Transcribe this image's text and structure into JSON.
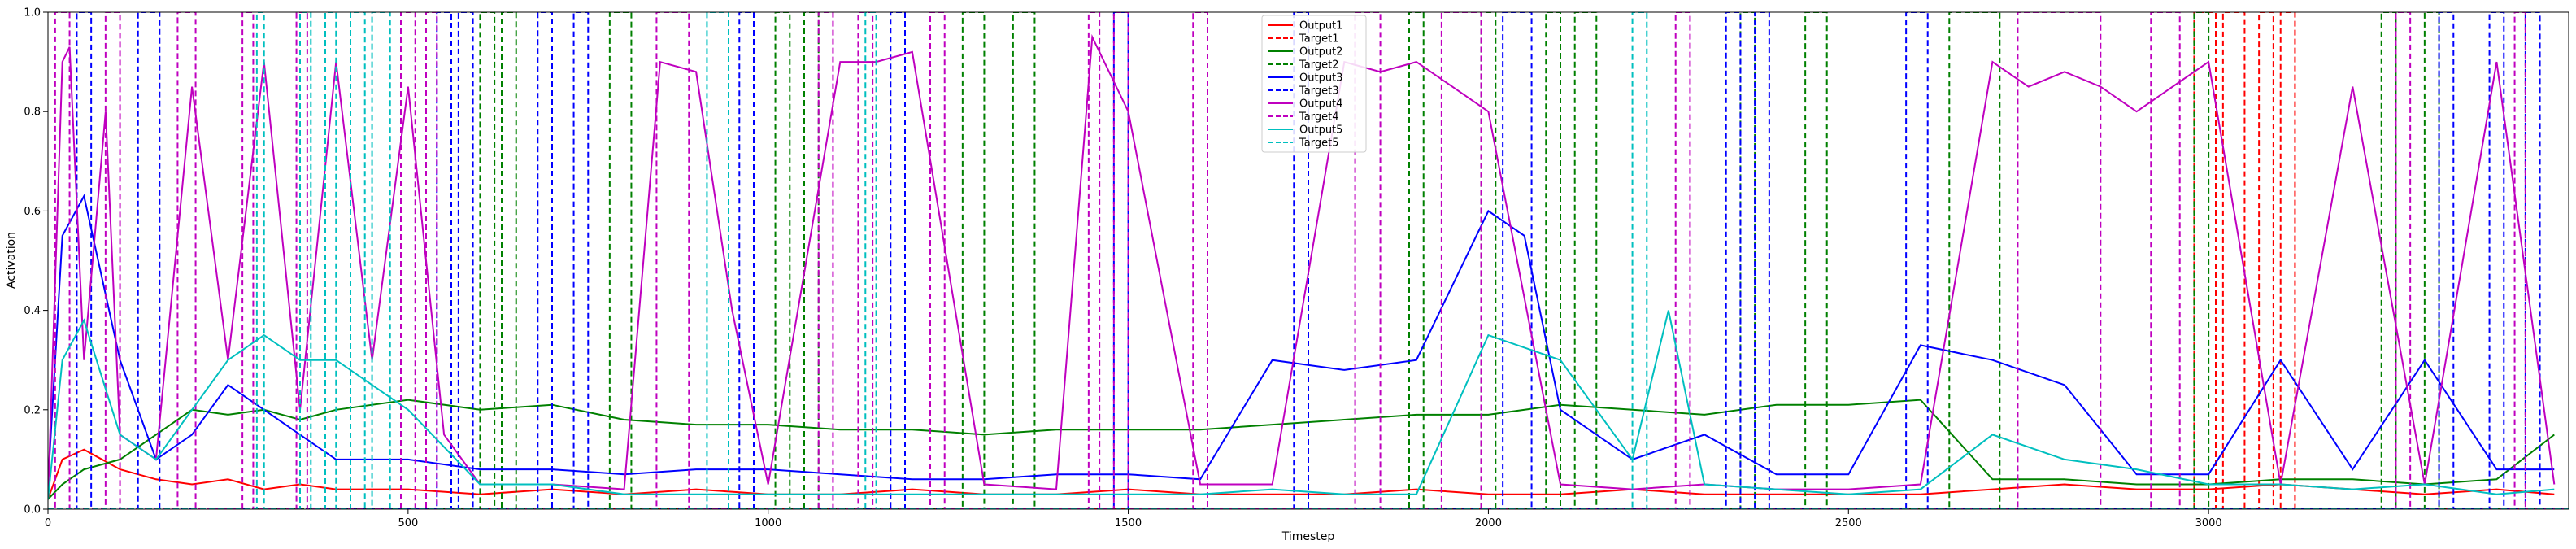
{
  "chart_data": {
    "type": "line",
    "xlabel": "Timestep",
    "ylabel": "Activation",
    "xlim": [
      0,
      3500
    ],
    "ylim": [
      0,
      1.0
    ],
    "x_ticks": [
      0,
      500,
      1000,
      1500,
      2000,
      2500,
      3000
    ],
    "y_ticks": [
      0.0,
      0.2,
      0.4,
      0.6,
      0.8,
      1.0
    ],
    "grid": false,
    "legend_position": "top-center",
    "series": [
      {
        "name": "Output1",
        "style": "solid",
        "color": "#ff0000",
        "x": [
          0,
          20,
          50,
          100,
          150,
          200,
          250,
          300,
          350,
          400,
          500,
          600,
          700,
          800,
          900,
          1000,
          1100,
          1200,
          1300,
          1400,
          1500,
          1600,
          1700,
          1800,
          1900,
          2000,
          2100,
          2200,
          2300,
          2400,
          2500,
          2600,
          2700,
          2800,
          2900,
          3000,
          3100,
          3200,
          3300,
          3400,
          3480
        ],
        "y": [
          0.02,
          0.1,
          0.12,
          0.08,
          0.06,
          0.05,
          0.06,
          0.04,
          0.05,
          0.04,
          0.04,
          0.03,
          0.04,
          0.03,
          0.04,
          0.03,
          0.03,
          0.04,
          0.03,
          0.03,
          0.04,
          0.03,
          0.03,
          0.03,
          0.04,
          0.03,
          0.03,
          0.04,
          0.03,
          0.03,
          0.03,
          0.03,
          0.04,
          0.05,
          0.04,
          0.04,
          0.05,
          0.04,
          0.03,
          0.04,
          0.03
        ]
      },
      {
        "name": "Target1",
        "style": "dashed",
        "color": "#ff0000",
        "pulses": [
          [
            2980,
            3010
          ],
          [
            3020,
            3050
          ],
          [
            3070,
            3090
          ],
          [
            3100,
            3120
          ]
        ]
      },
      {
        "name": "Output2",
        "style": "solid",
        "color": "#008000",
        "x": [
          0,
          20,
          50,
          100,
          150,
          200,
          250,
          300,
          350,
          400,
          500,
          600,
          700,
          800,
          900,
          1000,
          1100,
          1200,
          1300,
          1400,
          1500,
          1600,
          1700,
          1800,
          1900,
          2000,
          2100,
          2200,
          2300,
          2400,
          2500,
          2600,
          2700,
          2800,
          2900,
          3000,
          3100,
          3200,
          3300,
          3400,
          3480
        ],
        "y": [
          0.02,
          0.05,
          0.08,
          0.1,
          0.15,
          0.2,
          0.19,
          0.2,
          0.18,
          0.2,
          0.22,
          0.2,
          0.21,
          0.18,
          0.17,
          0.17,
          0.16,
          0.16,
          0.15,
          0.16,
          0.16,
          0.16,
          0.17,
          0.18,
          0.19,
          0.19,
          0.21,
          0.2,
          0.19,
          0.21,
          0.21,
          0.22,
          0.06,
          0.06,
          0.05,
          0.05,
          0.06,
          0.06,
          0.05,
          0.06,
          0.15
        ]
      },
      {
        "name": "Target2",
        "style": "dashed",
        "color": "#008000",
        "pulses": [
          [
            600,
            620
          ],
          [
            630,
            650
          ],
          [
            780,
            810
          ],
          [
            1010,
            1030
          ],
          [
            1050,
            1070
          ],
          [
            1270,
            1300
          ],
          [
            1340,
            1370
          ],
          [
            1890,
            1910
          ],
          [
            1990,
            2010
          ],
          [
            2080,
            2100
          ],
          [
            2120,
            2150
          ],
          [
            2350,
            2370
          ],
          [
            2440,
            2470
          ],
          [
            2640,
            2710
          ],
          [
            2980,
            3000
          ],
          [
            3240,
            3260
          ],
          [
            3300,
            3320
          ]
        ]
      },
      {
        "name": "Output3",
        "style": "solid",
        "color": "#0000ff",
        "x": [
          0,
          20,
          50,
          100,
          150,
          200,
          250,
          300,
          350,
          400,
          500,
          600,
          700,
          800,
          900,
          1000,
          1100,
          1200,
          1300,
          1400,
          1500,
          1600,
          1700,
          1800,
          1900,
          2000,
          2050,
          2100,
          2200,
          2300,
          2400,
          2500,
          2600,
          2700,
          2800,
          2900,
          3000,
          3100,
          3200,
          3300,
          3400,
          3480
        ],
        "y": [
          0.05,
          0.55,
          0.63,
          0.3,
          0.1,
          0.15,
          0.25,
          0.2,
          0.15,
          0.1,
          0.1,
          0.08,
          0.08,
          0.07,
          0.08,
          0.08,
          0.07,
          0.06,
          0.06,
          0.07,
          0.07,
          0.06,
          0.3,
          0.28,
          0.3,
          0.6,
          0.55,
          0.2,
          0.1,
          0.15,
          0.07,
          0.07,
          0.33,
          0.3,
          0.25,
          0.07,
          0.07,
          0.3,
          0.08,
          0.3,
          0.08,
          0.08
        ]
      },
      {
        "name": "Target3",
        "style": "dashed",
        "color": "#0000ff",
        "pulses": [
          [
            40,
            60
          ],
          [
            125,
            155
          ],
          [
            540,
            560
          ],
          [
            570,
            590
          ],
          [
            680,
            700
          ],
          [
            730,
            750
          ],
          [
            960,
            980
          ],
          [
            1170,
            1190
          ],
          [
            1480,
            1500
          ],
          [
            1730,
            1750
          ],
          [
            2020,
            2060
          ],
          [
            2330,
            2350
          ],
          [
            2370,
            2390
          ],
          [
            2580,
            2610
          ],
          [
            3320,
            3340
          ],
          [
            3390,
            3410
          ],
          [
            3440,
            3460
          ]
        ]
      },
      {
        "name": "Output4",
        "style": "solid",
        "color": "#bf00bf",
        "x": [
          0,
          20,
          30,
          50,
          80,
          100,
          150,
          200,
          250,
          300,
          350,
          400,
          450,
          500,
          550,
          600,
          700,
          800,
          850,
          900,
          950,
          1000,
          1100,
          1150,
          1200,
          1300,
          1400,
          1450,
          1500,
          1600,
          1700,
          1800,
          1850,
          1900,
          1950,
          2000,
          2100,
          2200,
          2300,
          2400,
          2500,
          2600,
          2700,
          2750,
          2800,
          2850,
          2900,
          3000,
          3100,
          3200,
          3300,
          3400,
          3480
        ],
        "y": [
          0.02,
          0.9,
          0.93,
          0.3,
          0.8,
          0.15,
          0.1,
          0.85,
          0.3,
          0.9,
          0.2,
          0.9,
          0.3,
          0.85,
          0.15,
          0.05,
          0.05,
          0.04,
          0.9,
          0.88,
          0.4,
          0.05,
          0.9,
          0.9,
          0.92,
          0.05,
          0.04,
          0.95,
          0.8,
          0.05,
          0.05,
          0.9,
          0.88,
          0.9,
          0.85,
          0.8,
          0.05,
          0.04,
          0.05,
          0.04,
          0.04,
          0.05,
          0.9,
          0.85,
          0.88,
          0.85,
          0.8,
          0.9,
          0.05,
          0.85,
          0.05,
          0.9,
          0.05
        ]
      },
      {
        "name": "Target4",
        "style": "dashed",
        "color": "#bf00bf",
        "pulses": [
          [
            10,
            30
          ],
          [
            80,
            100
          ],
          [
            180,
            205
          ],
          [
            270,
            285
          ],
          [
            345,
            360
          ],
          [
            490,
            510
          ],
          [
            525,
            540
          ],
          [
            845,
            890
          ],
          [
            1070,
            1090
          ],
          [
            1125,
            1145
          ],
          [
            1225,
            1245
          ],
          [
            1445,
            1460
          ],
          [
            1480,
            1500
          ],
          [
            1590,
            1610
          ],
          [
            1815,
            1850
          ],
          [
            1935,
            1990
          ],
          [
            2260,
            2280
          ],
          [
            2735,
            2850
          ],
          [
            2920,
            2960
          ],
          [
            3260,
            3280
          ],
          [
            3425,
            3440
          ]
        ]
      },
      {
        "name": "Output5",
        "style": "solid",
        "color": "#00bfbf",
        "x": [
          0,
          20,
          50,
          100,
          150,
          200,
          250,
          300,
          350,
          400,
          450,
          500,
          600,
          700,
          800,
          900,
          1000,
          1100,
          1200,
          1300,
          1400,
          1500,
          1600,
          1700,
          1800,
          1900,
          2000,
          2100,
          2200,
          2250,
          2300,
          2400,
          2500,
          2600,
          2700,
          2800,
          2900,
          3000,
          3100,
          3200,
          3300,
          3400,
          3480
        ],
        "y": [
          0.02,
          0.3,
          0.38,
          0.15,
          0.1,
          0.2,
          0.3,
          0.35,
          0.3,
          0.3,
          0.25,
          0.2,
          0.05,
          0.05,
          0.03,
          0.03,
          0.03,
          0.03,
          0.03,
          0.03,
          0.03,
          0.03,
          0.03,
          0.04,
          0.03,
          0.03,
          0.35,
          0.3,
          0.1,
          0.4,
          0.05,
          0.04,
          0.03,
          0.04,
          0.15,
          0.1,
          0.08,
          0.05,
          0.05,
          0.04,
          0.05,
          0.03,
          0.04
        ]
      },
      {
        "name": "Target5",
        "style": "dashed",
        "color": "#00bfbf",
        "pulses": [
          [
            290,
            300
          ],
          [
            350,
            365
          ],
          [
            385,
            400
          ],
          [
            420,
            440
          ],
          [
            450,
            475
          ],
          [
            915,
            945
          ],
          [
            1135,
            1150
          ],
          [
            2200,
            2220
          ]
        ]
      }
    ]
  }
}
